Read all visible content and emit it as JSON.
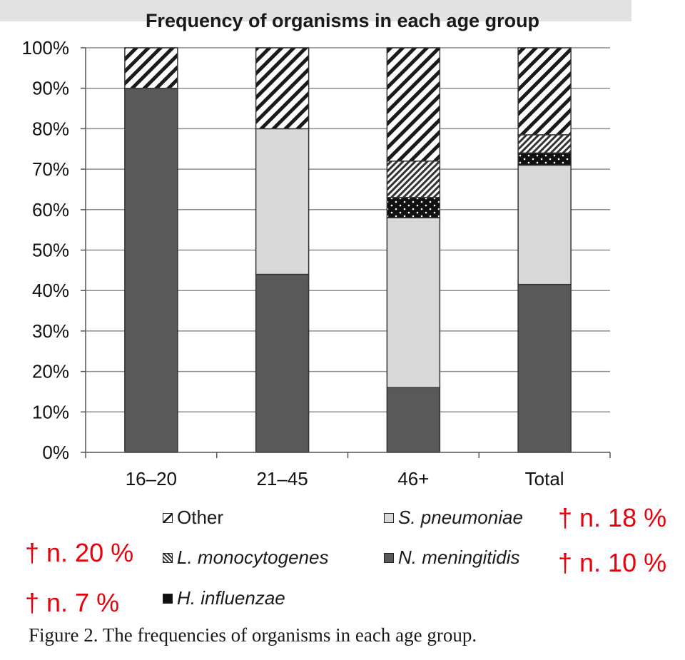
{
  "chart_data": {
    "type": "bar",
    "stacked": true,
    "title": "Frequency of organisms in each age group",
    "categories": [
      "16–20",
      "21–45",
      "46+",
      "Total"
    ],
    "ylim": [
      0,
      100
    ],
    "yticks": [
      "0%",
      "10%",
      "20%",
      "30%",
      "40%",
      "50%",
      "60%",
      "70%",
      "80%",
      "90%",
      "100%"
    ],
    "series": [
      {
        "name": "N. meningitidis",
        "italic": true,
        "pattern": "dark",
        "values": [
          90,
          44,
          16,
          41.5
        ]
      },
      {
        "name": "S. pneumoniae",
        "italic": true,
        "pattern": "light",
        "values": [
          0,
          36,
          42,
          29.5
        ]
      },
      {
        "name": "H. influenzae",
        "italic": true,
        "pattern": "dots",
        "values": [
          0,
          0,
          5,
          3
        ]
      },
      {
        "name": "L. monocytogenes",
        "italic": true,
        "pattern": "fine-hatch",
        "values": [
          0,
          0,
          9,
          4.5
        ]
      },
      {
        "name": "Other",
        "italic": false,
        "pattern": "hatch",
        "values": [
          10,
          20,
          28,
          21.5
        ]
      }
    ]
  },
  "annotations": {
    "s_pneumoniae": "† n. 18 %",
    "l_monocytogenes": "† n. 20 %",
    "n_meningitidis": "† n. 10 %",
    "h_influenzae": "† n. 7 %"
  },
  "caption": "Figure 2. The frequencies of organisms in each age group.",
  "colors": {
    "dark": "#595959",
    "light": "#d9d9d9",
    "annotation": "#e8000b"
  }
}
